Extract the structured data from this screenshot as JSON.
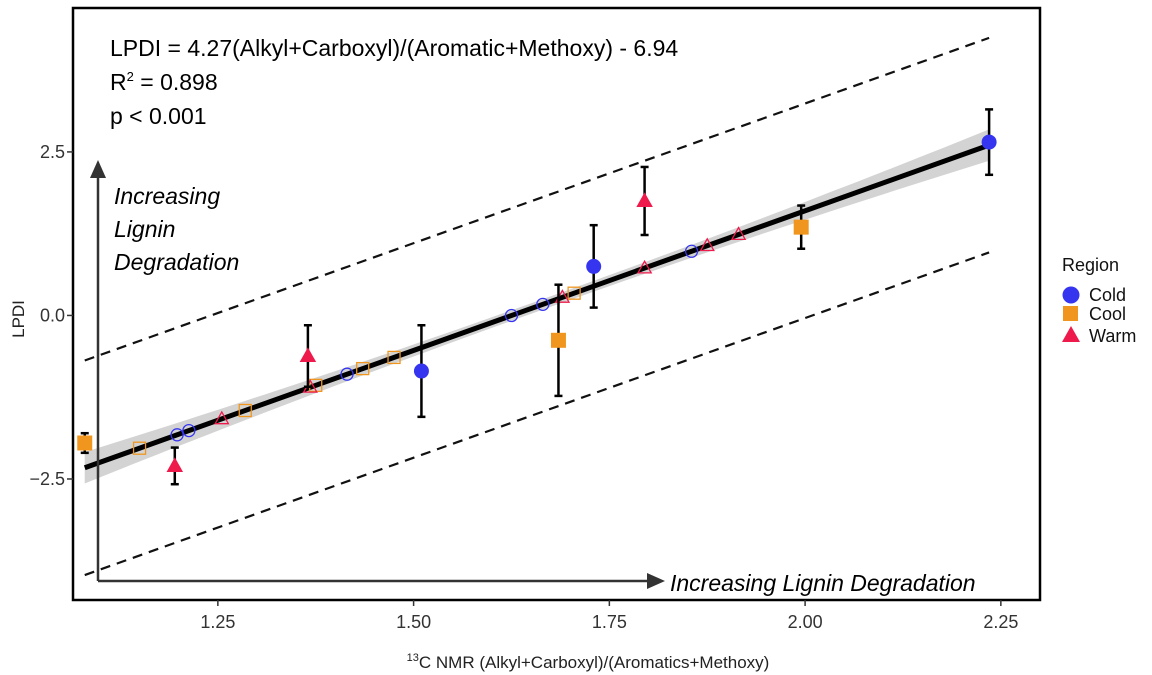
{
  "chart_data": {
    "type": "scatter",
    "x_ticks": [
      1.25,
      1.5,
      1.75,
      2.0,
      2.25
    ],
    "y_ticks": [
      -2.5,
      0.0,
      2.5
    ],
    "x_tick_labels": [
      "1.25",
      "1.50",
      "1.75",
      "2.00",
      "2.25"
    ],
    "y_tick_labels": [
      "−2.5",
      "0.0",
      "2.5"
    ],
    "xlim": [
      1.065,
      2.3
    ],
    "ylim": [
      -4.35,
      4.7
    ],
    "xlabel_sup": "13",
    "xlabel": "C NMR (Alkyl+Carboxyl)/(Aromatics+Methoxy)",
    "ylabel": "LPDI",
    "annotations": {
      "equation": "LPDI = 4.27(Alkyl+Carboxyl)/(Aromatic+Methoxy) - 6.94",
      "r2_prefix": "R",
      "r2_sup": "2",
      "r2_value": " = 0.898",
      "p_value": "p < 0.001",
      "y_arrow_label": [
        "Increasing",
        "Lignin",
        "Degradation"
      ],
      "x_arrow_label": "Increasing Lignin Degradation"
    },
    "fit": {
      "slope": 4.27,
      "intercept": -6.94,
      "x_range": [
        1.08,
        2.235
      ]
    },
    "confidence_band": {
      "halfwidth_ends": 0.24,
      "halfwidth_center": 0.08
    },
    "prediction_interval": {
      "offset": 1.64,
      "x_range": [
        1.08,
        2.235
      ]
    },
    "legend": {
      "title": "Region",
      "position": "right",
      "entries": [
        {
          "name": "Cold",
          "shape": "circle",
          "color": "#3535f0"
        },
        {
          "name": "Cool",
          "shape": "square",
          "color": "#f0961e"
        },
        {
          "name": "Warm",
          "shape": "triangle",
          "color": "#ee1a4c"
        }
      ]
    },
    "series": [
      {
        "name": "Cold",
        "shape": "circle",
        "color": "#3535f0",
        "points": [
          {
            "x": 1.51,
            "y": -0.85,
            "err": 0.7
          },
          {
            "x": 1.73,
            "y": 0.75,
            "err": 0.63
          },
          {
            "x": 2.235,
            "y": 2.65,
            "err": 0.5
          }
        ],
        "fitted_open": [
          1.198,
          1.213,
          1.415,
          1.625,
          1.665,
          1.855
        ]
      },
      {
        "name": "Cool",
        "shape": "square",
        "color": "#f0961e",
        "points": [
          {
            "x": 1.08,
            "y": -1.95,
            "err": 0.15
          },
          {
            "x": 1.685,
            "y": -0.38,
            "err": 0.85
          },
          {
            "x": 1.995,
            "y": 1.35,
            "err": 0.33
          }
        ],
        "fitted_open": [
          1.15,
          1.285,
          1.375,
          1.435,
          1.475,
          1.705
        ]
      },
      {
        "name": "Warm",
        "shape": "triangle",
        "color": "#ee1a4c",
        "points": [
          {
            "x": 1.195,
            "y": -2.3,
            "err": 0.28
          },
          {
            "x": 1.365,
            "y": -0.62,
            "err": 0.47
          },
          {
            "x": 1.795,
            "y": 1.75,
            "err": 0.52
          }
        ],
        "fitted_open": [
          1.255,
          1.368,
          1.69,
          1.795,
          1.875,
          1.915
        ]
      }
    ]
  }
}
